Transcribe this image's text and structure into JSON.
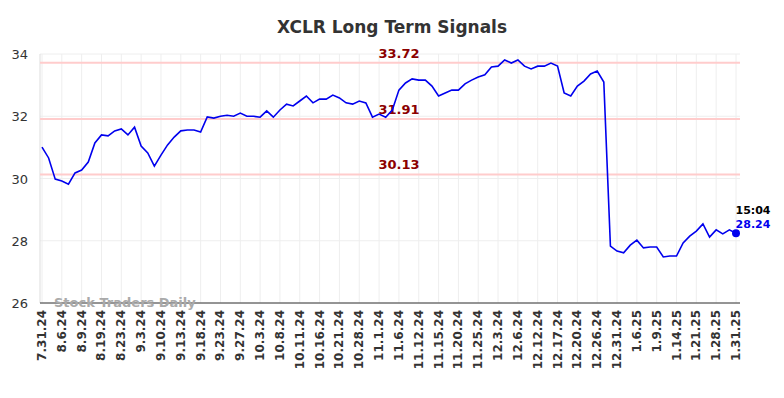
{
  "chart_data": {
    "type": "line",
    "title": "XCLR Long Term Signals",
    "categories": [
      "7.31.24",
      null,
      null,
      "8.6.24",
      null,
      null,
      "8.9.24",
      null,
      null,
      "8.19.24",
      null,
      null,
      "8.23.24",
      null,
      null,
      "9.3.24",
      null,
      null,
      "9.10.24",
      null,
      null,
      "9.13.24",
      null,
      null,
      "9.18.24",
      null,
      null,
      "9.23.24",
      null,
      null,
      "9.27.24",
      null,
      null,
      "10.3.24",
      null,
      null,
      "10.8.24",
      null,
      null,
      "10.11.24",
      null,
      null,
      "10.16.24",
      null,
      null,
      "10.21.24",
      null,
      null,
      "10.28.24",
      null,
      null,
      "11.1.24",
      null,
      null,
      "11.6.24",
      null,
      null,
      "11.12.24",
      null,
      null,
      "11.15.24",
      null,
      null,
      "11.20.24",
      null,
      null,
      "11.25.24",
      null,
      null,
      "12.3.24",
      null,
      null,
      "12.6.24",
      null,
      null,
      "12.12.24",
      null,
      null,
      "12.17.24",
      null,
      null,
      "12.20.24",
      null,
      null,
      "12.26.24",
      null,
      null,
      "12.31.24",
      null,
      null,
      "1.6.25",
      null,
      null,
      "1.9.25",
      null,
      null,
      "1.14.25",
      null,
      null,
      "1.21.25",
      null,
      null,
      "1.28.25",
      null,
      null,
      "1.31.25"
    ],
    "values": [
      31.01,
      30.66,
      29.98,
      29.92,
      29.82,
      30.18,
      30.27,
      30.53,
      31.14,
      31.4,
      31.37,
      31.53,
      31.59,
      31.4,
      31.65,
      31.04,
      30.82,
      30.4,
      30.75,
      31.08,
      31.33,
      31.53,
      31.56,
      31.56,
      31.49,
      31.98,
      31.94,
      32.0,
      32.03,
      32.0,
      32.1,
      32.0,
      32.0,
      31.97,
      32.17,
      31.97,
      32.2,
      32.39,
      32.33,
      32.49,
      32.65,
      32.43,
      32.55,
      32.55,
      32.68,
      32.59,
      32.43,
      32.39,
      32.49,
      32.43,
      31.97,
      32.07,
      31.97,
      32.2,
      32.84,
      33.07,
      33.2,
      33.16,
      33.16,
      32.97,
      32.65,
      32.75,
      32.84,
      32.84,
      33.04,
      33.16,
      33.26,
      33.33,
      33.58,
      33.61,
      33.81,
      33.71,
      33.81,
      33.61,
      33.52,
      33.61,
      33.61,
      33.71,
      33.61,
      32.75,
      32.65,
      32.97,
      33.13,
      33.36,
      33.45,
      33.1,
      27.83,
      27.67,
      27.61,
      27.86,
      28.02,
      27.77,
      27.8,
      27.8,
      27.48,
      27.51,
      27.51,
      27.93,
      28.15,
      28.31,
      28.54,
      28.12,
      28.35,
      28.22,
      28.35,
      28.24
    ],
    "color": "#0000ee",
    "ylim": [
      26,
      34
    ],
    "yticks": [
      26,
      28,
      30,
      32,
      34
    ],
    "grid": true,
    "reference_lines": [
      33.72,
      31.91,
      30.13
    ],
    "annotations": [
      "15:04"
    ],
    "watermark": "Stock Traders Daily"
  }
}
